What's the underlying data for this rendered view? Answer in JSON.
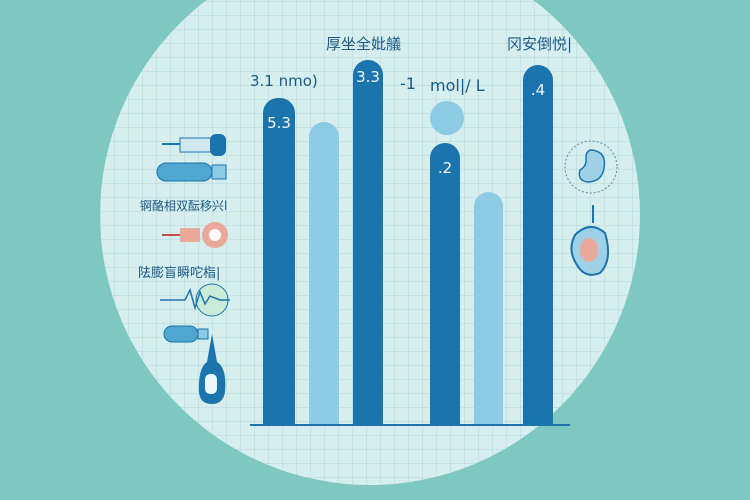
{
  "titles": {
    "center": "厚坐全妣艤",
    "right": "冈安倒悦|"
  },
  "annotations": {
    "left_unit": "3.1 nmo)",
    "mid_value": "-1",
    "mid_unit": "mol|/ L"
  },
  "side_labels": [
    "锕酪相双酝移兴l",
    "阹膨盲瞬咜栺|"
  ],
  "chart_data": {
    "type": "bar",
    "categories": [
      "",
      "",
      "",
      "",
      "",
      ""
    ],
    "bar_labels": [
      "5.3",
      "",
      "3.3",
      ".2",
      "",
      ".4"
    ],
    "colors": {
      "dark": "#1b74ae",
      "light": "#8ccbe3"
    }
  },
  "icons": [
    "syringe-icon",
    "inhaler-icon",
    "pen-injector-icon",
    "ecg-monitor-icon",
    "capsule-icon",
    "glucose-meter-icon",
    "fetus-icon",
    "uterus-icon"
  ]
}
